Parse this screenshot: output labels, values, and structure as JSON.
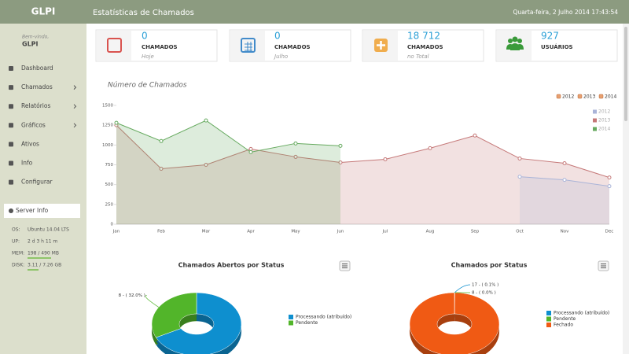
{
  "header": {
    "brand": "GLPI",
    "title": "Estatísticas de Chamados",
    "datetime": "Quarta-feira, 2 Julho 2014 17:43:54"
  },
  "sidebar": {
    "welcome": "Bem-vindo,",
    "user": "GLPI",
    "menu": [
      {
        "label": "Dashboard"
      },
      {
        "label": "Chamados"
      },
      {
        "label": "Relatórios"
      },
      {
        "label": "Gráficos"
      },
      {
        "label": "Ativos"
      },
      {
        "label": "Info"
      },
      {
        "label": "Configurar"
      }
    ],
    "server_info": {
      "title": "Server Info",
      "rows": [
        {
          "key": "OS:",
          "value": "Ubuntu 14.04 LTS"
        },
        {
          "key": "UP:",
          "value": "2 d 3 h 11 m"
        },
        {
          "key": "MEM:",
          "value": "198 / 490 MB"
        },
        {
          "key": "DISK:",
          "value": "3.11 / 7.26 GB"
        }
      ]
    }
  },
  "cards": [
    {
      "value": "0",
      "label": "CHAMADOS",
      "sub": "Hoje"
    },
    {
      "value": "0",
      "label": "CHAMADOS",
      "sub": "Julho"
    },
    {
      "value": "18 712",
      "label": "CHAMADOS",
      "sub": "no Total"
    },
    {
      "value": "927",
      "label": "USUÁRIOS"
    }
  ],
  "chart_data": [
    {
      "type": "line",
      "title": "Número de Chamados",
      "categories": [
        "Jan",
        "Feb",
        "Mar",
        "Apr",
        "May",
        "Jun",
        "Jul",
        "Aug",
        "Sep",
        "Oct",
        "Nov",
        "Dec"
      ],
      "series": [
        {
          "name": "2012",
          "color": "#aab4d8",
          "values": [
            null,
            null,
            null,
            null,
            null,
            null,
            null,
            null,
            null,
            600,
            560,
            480
          ]
        },
        {
          "name": "2013",
          "color": "#c57878",
          "values": [
            1250,
            700,
            750,
            950,
            850,
            780,
            820,
            960,
            1120,
            830,
            770,
            590
          ]
        },
        {
          "name": "2014",
          "color": "#66aa5f",
          "values": [
            1280,
            1050,
            1310,
            910,
            1020,
            990,
            null,
            null,
            null,
            null,
            null,
            null
          ]
        }
      ],
      "ylim": [
        0,
        1500
      ],
      "yticks": [
        0,
        250,
        500,
        750,
        1000,
        1250,
        1500
      ],
      "grid": false,
      "legend": "top-right"
    },
    {
      "type": "pie",
      "title": "Chamados Abertos por Status",
      "categories": [
        "Processando (atribuído)",
        "Pendente"
      ],
      "values": [
        17,
        8
      ],
      "value_labels": [
        null,
        "8 - ( 32.0% )"
      ],
      "colors": [
        "#0e8fcf",
        "#52b52a"
      ]
    },
    {
      "type": "pie",
      "title": "Chamados por Status",
      "categories": [
        "Processando (atribuído)",
        "Pendente",
        "Fechado"
      ],
      "values": [
        17,
        8,
        18687
      ],
      "value_labels": [
        "17 - ( 0.1% )",
        "8 - ( 0.0% )",
        null
      ],
      "colors": [
        "#0e8fcf",
        "#52b52a",
        "#f05a14"
      ]
    }
  ]
}
